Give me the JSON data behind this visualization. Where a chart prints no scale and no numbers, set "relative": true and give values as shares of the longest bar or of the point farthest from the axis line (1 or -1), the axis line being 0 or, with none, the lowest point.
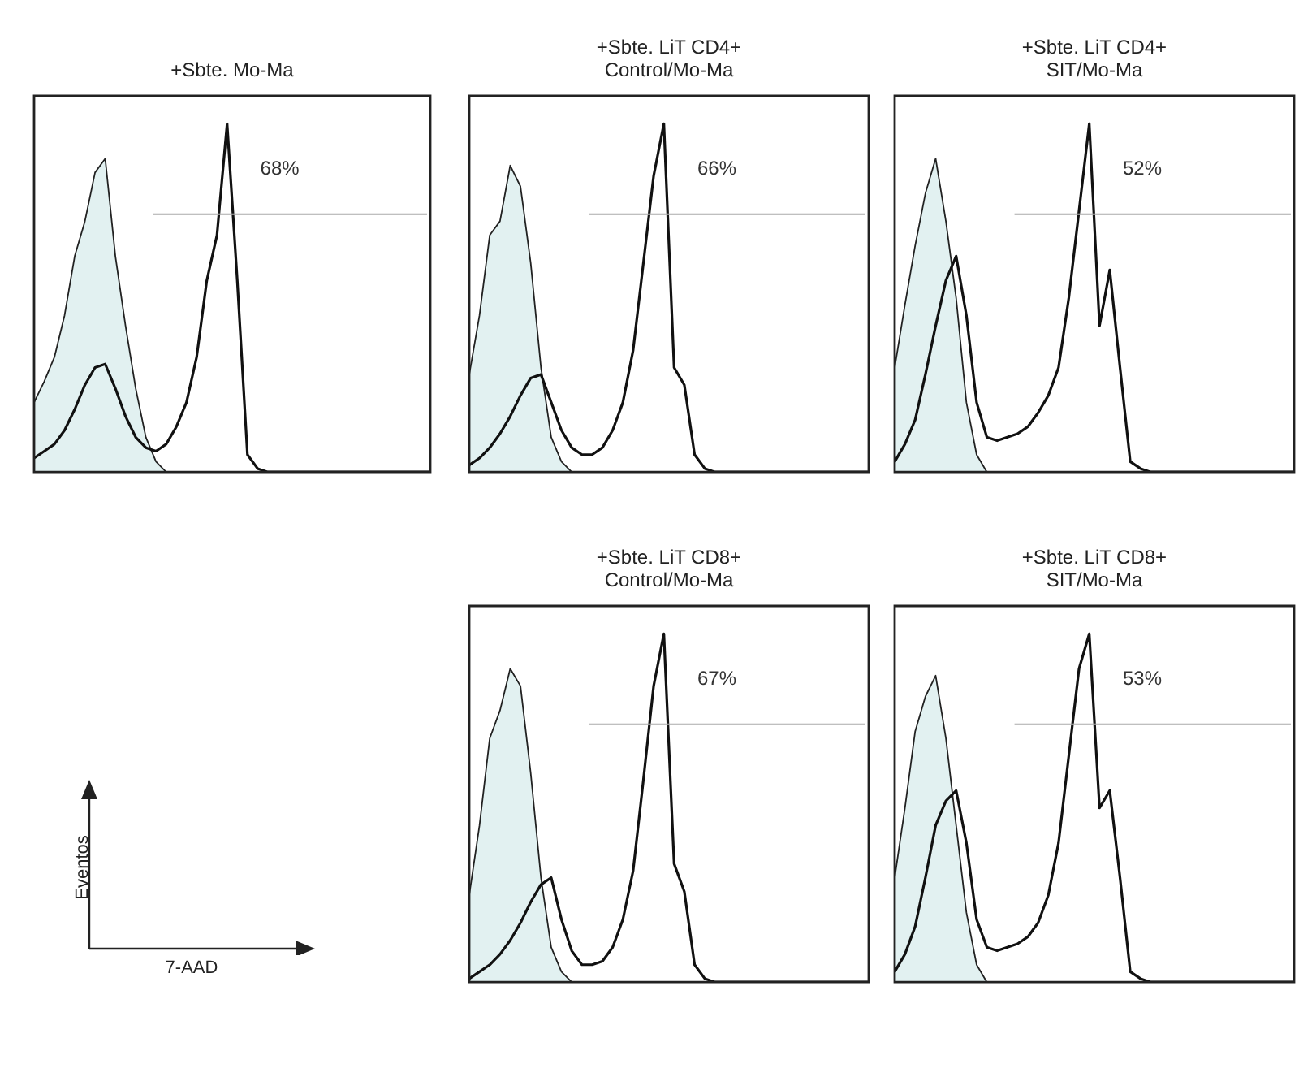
{
  "chart_data": [
    {
      "type": "area",
      "title": "+Sbte. Mo-Ma",
      "relative": true,
      "annotations": [
        "68%"
      ],
      "ref_lines": [
        {
          "axis": "y",
          "value": 0.74,
          "color": "#aaaaaa"
        }
      ],
      "categories": [
        null,
        null,
        null,
        null,
        null,
        null,
        null,
        null,
        null,
        null,
        null,
        null,
        null,
        null,
        null,
        null,
        null,
        null,
        null,
        null,
        null,
        null,
        null,
        null,
        null,
        null,
        null,
        null,
        null,
        null,
        null,
        null,
        null,
        null,
        null,
        null,
        null,
        null,
        null,
        null
      ],
      "series": [
        {
          "type": "area",
          "color": "#e2f1f1",
          "values": [
            0.2,
            0.26,
            0.33,
            0.45,
            0.62,
            0.72,
            0.86,
            0.9,
            0.62,
            0.42,
            0.24,
            0.1,
            0.03,
            0,
            0,
            0,
            0,
            0,
            0,
            0,
            0,
            0,
            0,
            0,
            0,
            0,
            0,
            0,
            0,
            0,
            0,
            0,
            0,
            0,
            0,
            0,
            0,
            0,
            0,
            0
          ]
        },
        {
          "type": "line",
          "color": "#111111",
          "values": [
            0.04,
            0.06,
            0.08,
            0.12,
            0.18,
            0.25,
            0.3,
            0.31,
            0.24,
            0.16,
            0.1,
            0.07,
            0.06,
            0.08,
            0.13,
            0.2,
            0.33,
            0.55,
            0.68,
            1,
            0.55,
            0.05,
            0.01,
            0,
            0,
            0,
            0,
            0,
            0,
            0,
            0,
            0,
            0,
            0,
            0,
            0,
            0,
            0,
            0,
            0
          ]
        }
      ]
    },
    {
      "type": "area",
      "title": "+Sbte. LiT CD4+\nControl/Mo-Ma",
      "relative": true,
      "annotations": [
        "66%"
      ],
      "ref_lines": [
        {
          "axis": "y",
          "value": 0.74,
          "color": "#aaaaaa"
        }
      ],
      "categories": [
        null,
        null,
        null,
        null,
        null,
        null,
        null,
        null,
        null,
        null,
        null,
        null,
        null,
        null,
        null,
        null,
        null,
        null,
        null,
        null,
        null,
        null,
        null,
        null,
        null,
        null,
        null,
        null,
        null,
        null,
        null,
        null,
        null,
        null,
        null,
        null,
        null,
        null,
        null,
        null
      ],
      "series": [
        {
          "type": "area",
          "color": "#e2f1f1",
          "values": [
            0.28,
            0.45,
            0.68,
            0.72,
            0.88,
            0.82,
            0.6,
            0.3,
            0.1,
            0.03,
            0,
            0,
            0,
            0,
            0,
            0,
            0,
            0,
            0,
            0,
            0,
            0,
            0,
            0,
            0,
            0,
            0,
            0,
            0,
            0,
            0,
            0,
            0,
            0,
            0,
            0,
            0,
            0,
            0,
            0
          ]
        },
        {
          "type": "line",
          "color": "#111111",
          "values": [
            0.02,
            0.04,
            0.07,
            0.11,
            0.16,
            0.22,
            0.27,
            0.28,
            0.2,
            0.12,
            0.07,
            0.05,
            0.05,
            0.07,
            0.12,
            0.2,
            0.35,
            0.6,
            0.85,
            1,
            0.3,
            0.25,
            0.05,
            0.01,
            0,
            0,
            0,
            0,
            0,
            0,
            0,
            0,
            0,
            0,
            0,
            0,
            0,
            0,
            0,
            0
          ]
        }
      ]
    },
    {
      "type": "area",
      "title": "+Sbte. LiT CD4+\nSIT/Mo-Ma",
      "relative": true,
      "annotations": [
        "52%"
      ],
      "ref_lines": [
        {
          "axis": "y",
          "value": 0.74,
          "color": "#aaaaaa"
        }
      ],
      "categories": [
        null,
        null,
        null,
        null,
        null,
        null,
        null,
        null,
        null,
        null,
        null,
        null,
        null,
        null,
        null,
        null,
        null,
        null,
        null,
        null,
        null,
        null,
        null,
        null,
        null,
        null,
        null,
        null,
        null,
        null,
        null,
        null,
        null,
        null,
        null,
        null,
        null,
        null,
        null,
        null
      ],
      "series": [
        {
          "type": "area",
          "color": "#e2f1f1",
          "values": [
            0.3,
            0.48,
            0.65,
            0.8,
            0.9,
            0.72,
            0.5,
            0.2,
            0.05,
            0,
            0,
            0,
            0,
            0,
            0,
            0,
            0,
            0,
            0,
            0,
            0,
            0,
            0,
            0,
            0,
            0,
            0,
            0,
            0,
            0,
            0,
            0,
            0,
            0,
            0,
            0,
            0,
            0,
            0,
            0
          ]
        },
        {
          "type": "line",
          "color": "#111111",
          "values": [
            0.03,
            0.08,
            0.15,
            0.28,
            0.42,
            0.55,
            0.62,
            0.45,
            0.2,
            0.1,
            0.09,
            0.1,
            0.11,
            0.13,
            0.17,
            0.22,
            0.3,
            0.5,
            0.75,
            1,
            0.42,
            0.58,
            0.3,
            0.03,
            0.01,
            0,
            0,
            0,
            0,
            0,
            0,
            0,
            0,
            0,
            0,
            0,
            0,
            0,
            0,
            0
          ]
        }
      ]
    },
    {
      "type": "area",
      "title": "+Sbte. LiT CD8+\nControl/Mo-Ma",
      "relative": true,
      "annotations": [
        "67%"
      ],
      "ref_lines": [
        {
          "axis": "y",
          "value": 0.74,
          "color": "#aaaaaa"
        }
      ],
      "categories": [
        null,
        null,
        null,
        null,
        null,
        null,
        null,
        null,
        null,
        null,
        null,
        null,
        null,
        null,
        null,
        null,
        null,
        null,
        null,
        null,
        null,
        null,
        null,
        null,
        null,
        null,
        null,
        null,
        null,
        null,
        null,
        null,
        null,
        null,
        null,
        null,
        null,
        null,
        null,
        null
      ],
      "series": [
        {
          "type": "area",
          "color": "#e2f1f1",
          "values": [
            0.25,
            0.45,
            0.7,
            0.78,
            0.9,
            0.85,
            0.6,
            0.3,
            0.1,
            0.03,
            0,
            0,
            0,
            0,
            0,
            0,
            0,
            0,
            0,
            0,
            0,
            0,
            0,
            0,
            0,
            0,
            0,
            0,
            0,
            0,
            0,
            0,
            0,
            0,
            0,
            0,
            0,
            0,
            0,
            0
          ]
        },
        {
          "type": "line",
          "color": "#111111",
          "values": [
            0.01,
            0.03,
            0.05,
            0.08,
            0.12,
            0.17,
            0.23,
            0.28,
            0.3,
            0.18,
            0.09,
            0.05,
            0.05,
            0.06,
            0.1,
            0.18,
            0.32,
            0.58,
            0.85,
            1,
            0.34,
            0.26,
            0.05,
            0.01,
            0,
            0,
            0,
            0,
            0,
            0,
            0,
            0,
            0,
            0,
            0,
            0,
            0,
            0,
            0,
            0
          ]
        }
      ]
    },
    {
      "type": "area",
      "title": "+Sbte. LiT CD8+\nSIT/Mo-Ma",
      "relative": true,
      "annotations": [
        "53%"
      ],
      "ref_lines": [
        {
          "axis": "y",
          "value": 0.74,
          "color": "#aaaaaa"
        }
      ],
      "categories": [
        null,
        null,
        null,
        null,
        null,
        null,
        null,
        null,
        null,
        null,
        null,
        null,
        null,
        null,
        null,
        null,
        null,
        null,
        null,
        null,
        null,
        null,
        null,
        null,
        null,
        null,
        null,
        null,
        null,
        null,
        null,
        null,
        null,
        null,
        null,
        null,
        null,
        null,
        null,
        null
      ],
      "series": [
        {
          "type": "area",
          "color": "#e2f1f1",
          "values": [
            0.3,
            0.5,
            0.72,
            0.82,
            0.88,
            0.7,
            0.45,
            0.2,
            0.05,
            0,
            0,
            0,
            0,
            0,
            0,
            0,
            0,
            0,
            0,
            0,
            0,
            0,
            0,
            0,
            0,
            0,
            0,
            0,
            0,
            0,
            0,
            0,
            0,
            0,
            0,
            0,
            0,
            0,
            0,
            0
          ]
        },
        {
          "type": "line",
          "color": "#111111",
          "values": [
            0.03,
            0.08,
            0.16,
            0.3,
            0.45,
            0.52,
            0.55,
            0.4,
            0.18,
            0.1,
            0.09,
            0.1,
            0.11,
            0.13,
            0.17,
            0.25,
            0.4,
            0.65,
            0.9,
            1,
            0.5,
            0.55,
            0.3,
            0.03,
            0.01,
            0,
            0,
            0,
            0,
            0,
            0,
            0,
            0,
            0,
            0,
            0,
            0,
            0,
            0,
            0
          ]
        }
      ]
    },
    {
      "type": "other",
      "xlabel": "7-AAD",
      "ylabel": "Eventos"
    }
  ]
}
